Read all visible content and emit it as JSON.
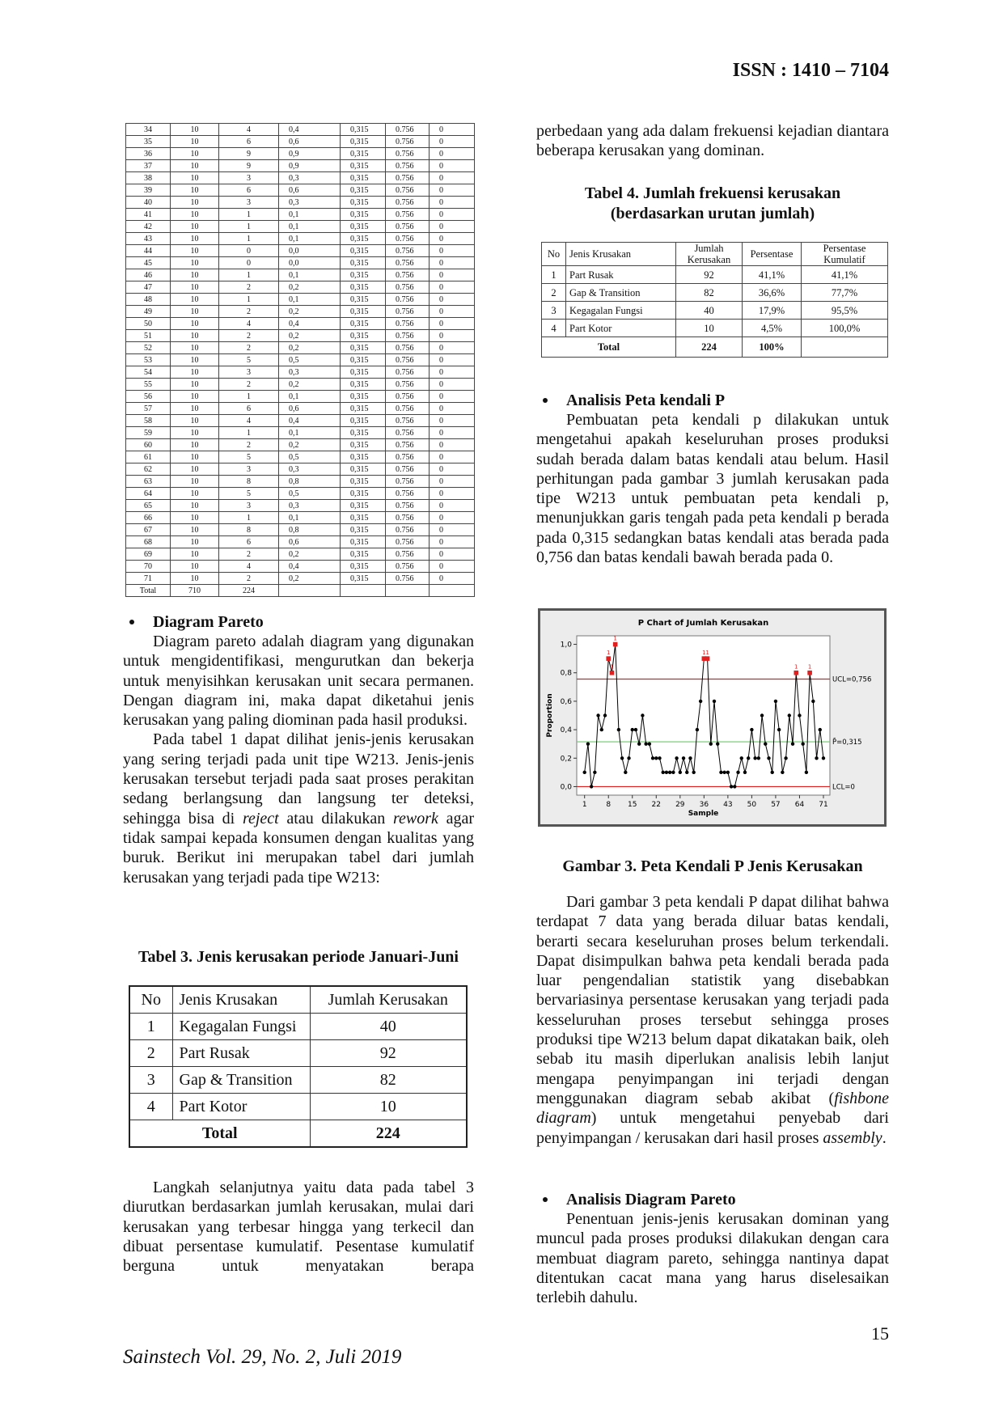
{
  "header": {
    "issn": "ISSN : 1410 – 7104"
  },
  "data_table": {
    "rows": [
      [
        "34",
        "10",
        "4",
        "0,4",
        "0,315",
        "0.756",
        "0"
      ],
      [
        "35",
        "10",
        "6",
        "0,6",
        "0,315",
        "0.756",
        "0"
      ],
      [
        "36",
        "10",
        "9",
        "0,9",
        "0,315",
        "0.756",
        "0"
      ],
      [
        "37",
        "10",
        "9",
        "0,9",
        "0,315",
        "0.756",
        "0"
      ],
      [
        "38",
        "10",
        "3",
        "0,3",
        "0,315",
        "0.756",
        "0"
      ],
      [
        "39",
        "10",
        "6",
        "0,6",
        "0,315",
        "0.756",
        "0"
      ],
      [
        "40",
        "10",
        "3",
        "0,3",
        "0,315",
        "0.756",
        "0"
      ],
      [
        "41",
        "10",
        "1",
        "0,1",
        "0,315",
        "0.756",
        "0"
      ],
      [
        "42",
        "10",
        "1",
        "0,1",
        "0,315",
        "0.756",
        "0"
      ],
      [
        "43",
        "10",
        "1",
        "0,1",
        "0,315",
        "0.756",
        "0"
      ],
      [
        "44",
        "10",
        "0",
        "0,0",
        "0,315",
        "0.756",
        "0"
      ],
      [
        "45",
        "10",
        "0",
        "0,0",
        "0,315",
        "0.756",
        "0"
      ],
      [
        "46",
        "10",
        "1",
        "0,1",
        "0,315",
        "0.756",
        "0"
      ],
      [
        "47",
        "10",
        "2",
        "0,2",
        "0,315",
        "0.756",
        "0"
      ],
      [
        "48",
        "10",
        "1",
        "0,1",
        "0,315",
        "0.756",
        "0"
      ],
      [
        "49",
        "10",
        "2",
        "0,2",
        "0,315",
        "0.756",
        "0"
      ],
      [
        "50",
        "10",
        "4",
        "0,4",
        "0,315",
        "0.756",
        "0"
      ],
      [
        "51",
        "10",
        "2",
        "0,2",
        "0,315",
        "0.756",
        "0"
      ],
      [
        "52",
        "10",
        "2",
        "0,2",
        "0,315",
        "0.756",
        "0"
      ],
      [
        "53",
        "10",
        "5",
        "0,5",
        "0,315",
        "0.756",
        "0"
      ],
      [
        "54",
        "10",
        "3",
        "0,3",
        "0,315",
        "0.756",
        "0"
      ],
      [
        "55",
        "10",
        "2",
        "0,2",
        "0,315",
        "0.756",
        "0"
      ],
      [
        "56",
        "10",
        "1",
        "0,1",
        "0,315",
        "0.756",
        "0"
      ],
      [
        "57",
        "10",
        "6",
        "0,6",
        "0,315",
        "0.756",
        "0"
      ],
      [
        "58",
        "10",
        "4",
        "0,4",
        "0,315",
        "0.756",
        "0"
      ],
      [
        "59",
        "10",
        "1",
        "0,1",
        "0,315",
        "0.756",
        "0"
      ],
      [
        "60",
        "10",
        "2",
        "0,2",
        "0,315",
        "0.756",
        "0"
      ],
      [
        "61",
        "10",
        "5",
        "0,5",
        "0,315",
        "0.756",
        "0"
      ],
      [
        "62",
        "10",
        "3",
        "0,3",
        "0,315",
        "0.756",
        "0"
      ],
      [
        "63",
        "10",
        "8",
        "0,8",
        "0,315",
        "0.756",
        "0"
      ],
      [
        "64",
        "10",
        "5",
        "0,5",
        "0,315",
        "0.756",
        "0"
      ],
      [
        "65",
        "10",
        "3",
        "0,3",
        "0,315",
        "0.756",
        "0"
      ],
      [
        "66",
        "10",
        "1",
        "0,1",
        "0,315",
        "0.756",
        "0"
      ],
      [
        "67",
        "10",
        "8",
        "0,8",
        "0,315",
        "0.756",
        "0"
      ],
      [
        "68",
        "10",
        "6",
        "0,6",
        "0,315",
        "0.756",
        "0"
      ],
      [
        "69",
        "10",
        "2",
        "0,2",
        "0,315",
        "0.756",
        "0"
      ],
      [
        "70",
        "10",
        "4",
        "0,4",
        "0,315",
        "0.756",
        "0"
      ],
      [
        "71",
        "10",
        "2",
        "0,2",
        "0,315",
        "0.756",
        "0"
      ]
    ],
    "total": [
      "Total",
      "710",
      "224"
    ]
  },
  "left_column": {
    "heading1": "Diagram Pareto",
    "para1": "Diagram pareto adalah diagram yang digunakan untuk mengidentifikasi, mengurutkan dan bekerja untuk menyisihkan kerusakan unit secara permanen. Dengan diagram ini, maka dapat diketahui jenis kerusakan yang paling diominan pada hasil produksi.",
    "para2": [
      "Pada tabel 1 dapat dilihat jenis-jenis kerusakan yang sering terjadi pada unit tipe W213. Jenis-jenis kerusakan tersebut terjadi pada saat proses perakitan sedang berlangsung dan langsung ter deteksi, sehingga bisa di ",
      "reject",
      " atau dilakukan ",
      "rework",
      " agar tidak sampai kepada konsumen dengan kualitas yang buruk. Berikut ini merupakan tabel dari jumlah kerusakan yang terjadi pada tipe W213:"
    ],
    "table3_caption": "Tabel 3. Jenis kerusakan periode Januari-Juni",
    "table3": {
      "header": [
        "No",
        "Jenis Krusakan",
        "Jumlah Kerusakan"
      ],
      "rows": [
        [
          "1",
          "Kegagalan Fungsi",
          "40"
        ],
        [
          "2",
          "Part Rusak",
          "92"
        ],
        [
          "3",
          "Gap & Transition",
          "82"
        ],
        [
          "4",
          "Part Kotor",
          "10"
        ]
      ],
      "total": [
        "Total",
        "224"
      ]
    },
    "para3": "Langkah selanjutnya yaitu data pada tabel 3 diurutkan berdasarkan jumlah kerusakan, mulai dari kerusakan yang terbesar hingga yang terkecil dan dibuat persentase kumulatif. Pesentase kumulatif berguna untuk menyatakan berapa"
  },
  "right_column": {
    "para0": "perbedaan yang ada dalam frekuensi kejadian diantara beberapa kerusakan yang dominan.",
    "table4_caption": [
      "Tabel 4. Jumlah frekuensi kerusakan",
      "(berdasarkan urutan jumlah)"
    ],
    "table4": {
      "header": [
        "No",
        "Jenis Krusakan",
        "Jumlah Kerusakan",
        "Persentase",
        "Persentase Kumulatif"
      ],
      "rows": [
        [
          "1",
          "Part Rusak",
          "92",
          "41,1%",
          "41,1%"
        ],
        [
          "2",
          "Gap & Transition",
          "82",
          "36,6%",
          "77,7%"
        ],
        [
          "3",
          "Kegagalan Fungsi",
          "40",
          "17,9%",
          "95,5%"
        ],
        [
          "4",
          "Part Kotor",
          "10",
          "4,5%",
          "100,0%"
        ]
      ],
      "total": [
        "Total",
        "224",
        "100%"
      ]
    },
    "heading1": "Analisis Peta kendali P",
    "para1": "Pembuatan peta kendali p dilakukan untuk mengetahui apakah keseluruhan proses produksi sudah berada dalam batas kendali atau belum. Hasil perhitungan pada gambar 3 jumlah kerusakan pada tipe W213 untuk pembuatan peta kendali p, menunjukkan garis tengah pada peta kendali p berada pada 0,315 sedangkan batas kendali atas berada pada 0,756 dan batas kendali bawah berada pada 0.",
    "figure_caption": "Gambar 3. Peta Kendali P Jenis Kerusakan",
    "para2": [
      "Dari gambar 3 peta kendali P dapat dilihat bahwa terdapat 7 data yang berada diluar batas kendali, berarti secara keseluruhan proses belum terkendali. Dapat disimpulkan bahwa peta kendali berada pada luar pengendalian statistik yang disebabkan bervariasinya persentase kerusakan yang terjadi pada kesseluruhan proses tersebut sehingga proses produksi tipe W213 belum dapat dikatakan baik, oleh sebab itu masih diperlukan analisis lebih lanjut mengapa penyimpangan ini terjadi dengan menggunakan diagram sebab akibat (",
      "fishbone diagram",
      ") untuk mengetahui penyebab dari penyimpangan / kerusakan dari hasil proses ",
      "assembly",
      "."
    ],
    "heading2": "Analisis Diagram Pareto",
    "para3": "Penentuan jenis-jenis kerusakan dominan yang muncul pada proses produksi dilakukan dengan cara membuat diagram pareto, sehingga nantinya dapat ditentukan cacat mana yang harus diselesaikan terlebih dahulu."
  },
  "chart_data": {
    "type": "line",
    "title": "P Chart of Jumlah Kerusakan",
    "x_label": "Sample",
    "y_label": "Proportion",
    "x": [
      1,
      2,
      3,
      4,
      5,
      6,
      7,
      8,
      9,
      10,
      11,
      12,
      13,
      14,
      15,
      16,
      17,
      18,
      19,
      20,
      21,
      22,
      23,
      24,
      25,
      26,
      27,
      28,
      29,
      30,
      31,
      32,
      33,
      34,
      35,
      36,
      37,
      38,
      39,
      40,
      41,
      42,
      43,
      44,
      45,
      46,
      47,
      48,
      49,
      50,
      51,
      52,
      53,
      54,
      55,
      56,
      57,
      58,
      59,
      60,
      61,
      62,
      63,
      64,
      65,
      66,
      67,
      68,
      69,
      70,
      71
    ],
    "series": [
      {
        "name": "Proportion",
        "color": "#000000",
        "flag_color": "#e02020",
        "values": [
          0.1,
          0.3,
          0.0,
          0.1,
          0.5,
          0.4,
          0.5,
          0.9,
          0.8,
          1.0,
          0.4,
          0.2,
          0.1,
          0.2,
          0.4,
          0.4,
          0.3,
          0.5,
          0.3,
          0.3,
          0.2,
          0.2,
          0.2,
          0.1,
          0.1,
          0.1,
          0.1,
          0.2,
          0.1,
          0.2,
          0.1,
          0.2,
          0.1,
          0.4,
          0.6,
          0.9,
          0.9,
          0.3,
          0.6,
          0.3,
          0.1,
          0.1,
          0.1,
          0.0,
          0.0,
          0.1,
          0.2,
          0.1,
          0.2,
          0.4,
          0.2,
          0.2,
          0.5,
          0.3,
          0.2,
          0.1,
          0.6,
          0.4,
          0.1,
          0.2,
          0.5,
          0.3,
          0.8,
          0.5,
          0.3,
          0.1,
          0.8,
          0.6,
          0.2,
          0.4,
          0.2
        ]
      }
    ],
    "flag_label": "1",
    "control_limits": [
      {
        "value": 0.756,
        "label": "UCL=0,756",
        "color": "#e02020"
      },
      {
        "value": 0.315,
        "label": "P̄=0,315",
        "color": "#66cc66"
      },
      {
        "value": 0,
        "label": "LCL=0",
        "color": "#e02020"
      }
    ],
    "xlim": [
      -1.3,
      72.9
    ],
    "ylim": [
      -0.06,
      1.06
    ],
    "xticks": [
      1,
      8,
      15,
      22,
      29,
      36,
      43,
      50,
      57,
      64,
      71
    ],
    "yticks": [
      {
        "value": 0,
        "label": "0,0"
      },
      {
        "value": 0.2,
        "label": "0,2"
      },
      {
        "value": 0.4,
        "label": "0,4"
      },
      {
        "value": 0.6,
        "label": "0,6"
      },
      {
        "value": 0.8,
        "label": "0,8"
      },
      {
        "value": 1.0,
        "label": "1,0"
      }
    ]
  },
  "footer": {
    "journal": "Sainstech Vol. 29, No. 2, Juli 2019",
    "page": "15"
  }
}
